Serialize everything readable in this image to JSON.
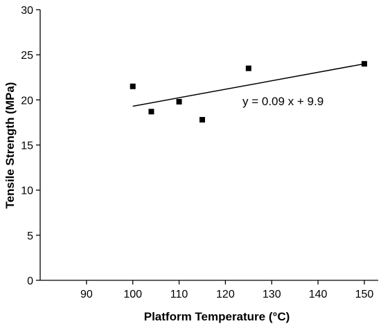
{
  "chart_data": {
    "type": "scatter",
    "xlabel": "Platform Temperature (°C)",
    "ylabel": "Tensile Strength (MPa)",
    "xlim": [
      80,
      153
    ],
    "ylim": [
      0,
      30
    ],
    "xticks": [
      90,
      100,
      110,
      120,
      130,
      140,
      150
    ],
    "yticks": [
      0,
      5,
      10,
      15,
      20,
      25,
      30
    ],
    "grid": false,
    "series": [
      {
        "points": [
          {
            "x": 100,
            "y": 21.5
          },
          {
            "x": 104,
            "y": 18.7
          },
          {
            "x": 110,
            "y": 19.8
          },
          {
            "x": 115,
            "y": 17.8
          },
          {
            "x": 125,
            "y": 23.5
          },
          {
            "x": 150,
            "y": 24.0
          }
        ]
      }
    ],
    "trendline": {
      "x_range": [
        100,
        150
      ],
      "y_range": [
        19.3,
        24.0
      ]
    },
    "annotation": "y = 0.09 x + 9.9"
  }
}
